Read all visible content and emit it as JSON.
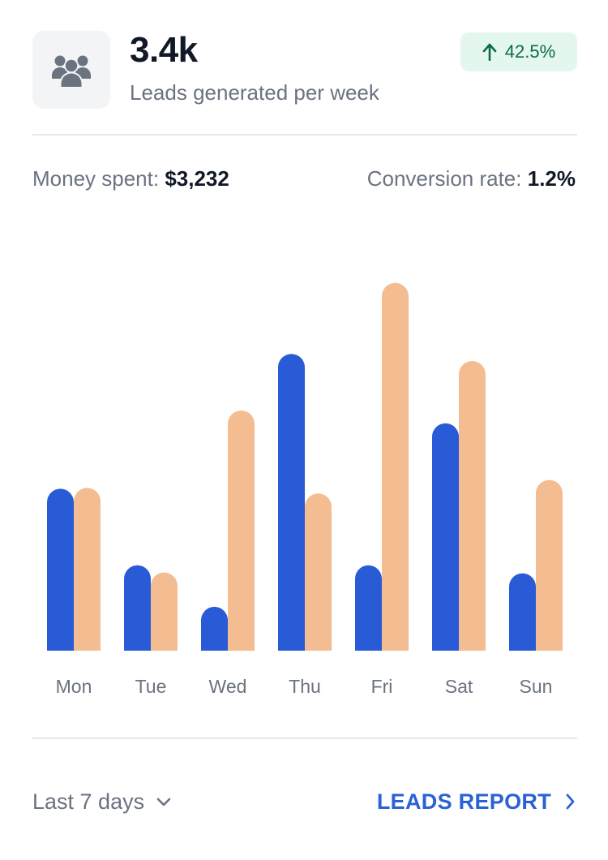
{
  "header": {
    "value": "3.4k",
    "subtitle": "Leads generated per week",
    "icon": "users-group-icon",
    "badge": {
      "icon": "arrow-up-icon",
      "text": "42.5%",
      "color": "#0d6b47",
      "background": "#e3f7ee"
    }
  },
  "stats": {
    "money_label": "Money spent:",
    "money_value": "$3,232",
    "conversion_label": "Conversion rate:",
    "conversion_value": "1.2%"
  },
  "chart_data": {
    "type": "bar",
    "categories": [
      "Mon",
      "Tue",
      "Wed",
      "Thu",
      "Fri",
      "Sat",
      "Sun"
    ],
    "series": [
      {
        "color": "#2a5bd7",
        "values": [
          203,
          107,
          55,
          372,
          107,
          285,
          97
        ]
      },
      {
        "color": "#f4bc91",
        "values": [
          204,
          98,
          301,
          197,
          461,
          363,
          214
        ]
      }
    ],
    "ylim": [
      0,
      480
    ],
    "grid": false,
    "legend": "none",
    "title": "",
    "xlabel": "",
    "ylabel": ""
  },
  "footer": {
    "range_label": "Last 7 days",
    "range_icon": "chevron-down-icon",
    "report_label": "LEADS REPORT",
    "report_icon": "chevron-right-icon"
  }
}
